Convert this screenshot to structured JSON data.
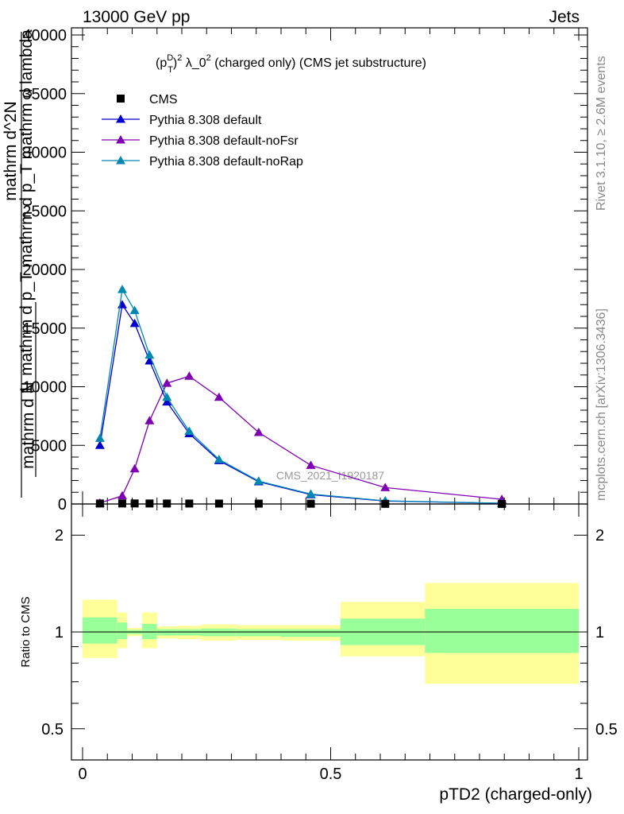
{
  "header": {
    "energy_label": "13000 GeV pp",
    "process_label": "Jets"
  },
  "side_labels": {
    "rivet": "Rivet 3.1.10, ≥ 2.6M events",
    "mcplots": "mcplots.cern.ch [arXiv:1306.3436]"
  },
  "watermark": "CMS_2021_I1920187",
  "colors": {
    "cms": "#000000",
    "default": "#0000cc",
    "noFsr": "#7f00b2",
    "noRap": "#0088b0",
    "band_inner": "#99ff99",
    "band_outer": "#ffff99"
  },
  "chart_data": [
    {
      "type": "line",
      "title": "(p_T^D)^2 λ_0^2 (charged only) (CMS jet substructure)",
      "ylabel_parts": [
        "1",
        "mathrm d N",
        "mathrm d p_T mathrm d p_T mathrm d lambda",
        "mathrm d^2N"
      ],
      "ylim": [
        0,
        40000
      ],
      "y_ticks": [
        0,
        5000,
        10000,
        15000,
        20000,
        25000,
        30000,
        35000,
        40000
      ],
      "y_tick_labels": [
        "0",
        "5000",
        "10000",
        "15000",
        "20000",
        "25000",
        "30000",
        "35000",
        "40000"
      ],
      "xlim": [
        0,
        1
      ],
      "series": [
        {
          "name": "CMS",
          "marker": "square",
          "x": [
            0.035,
            0.08,
            0.105,
            0.135,
            0.17,
            0.215,
            0.275,
            0.355,
            0.46,
            0.61,
            0.845
          ],
          "y": [
            40,
            45,
            45,
            42,
            40,
            38,
            35,
            30,
            25,
            15,
            8
          ]
        },
        {
          "name": "Pythia 8.308 default",
          "marker": "triangle",
          "x": [
            0.035,
            0.08,
            0.105,
            0.135,
            0.17,
            0.215,
            0.275,
            0.355,
            0.46,
            0.61,
            0.845
          ],
          "y": [
            5000,
            17000,
            15400,
            12200,
            8700,
            6000,
            3700,
            1900,
            800,
            250,
            60
          ]
        },
        {
          "name": "Pythia 8.308 default-noFsr",
          "marker": "triangle",
          "x": [
            0.035,
            0.08,
            0.105,
            0.135,
            0.17,
            0.215,
            0.275,
            0.355,
            0.46,
            0.61,
            0.845
          ],
          "y": [
            80,
            700,
            3000,
            7100,
            10300,
            10900,
            9100,
            6100,
            3300,
            1400,
            400
          ]
        },
        {
          "name": "Pythia 8.308 default-noRap",
          "marker": "triangle",
          "x": [
            0.035,
            0.08,
            0.105,
            0.135,
            0.17,
            0.215,
            0.275,
            0.355,
            0.46,
            0.61,
            0.845
          ],
          "y": [
            5600,
            18300,
            16500,
            12700,
            9100,
            6200,
            3800,
            1950,
            850,
            270,
            70
          ]
        }
      ]
    },
    {
      "type": "area",
      "ylabel": "Ratio to CMS",
      "xlabel": "pTD2 (charged-only)",
      "xlim": [
        0,
        1
      ],
      "x_ticks": [
        0,
        0.5,
        1
      ],
      "x_tick_labels": [
        "0",
        "0.5",
        "1"
      ],
      "y_scale": "log",
      "ylim": [
        0.4,
        2.5
      ],
      "y_ticks": [
        0.5,
        1,
        2
      ],
      "y_tick_labels": [
        "0.5",
        "1",
        "2"
      ],
      "bins": [
        {
          "x0": 0.0,
          "x1": 0.07,
          "inner": [
            0.92,
            1.11
          ],
          "outer": [
            0.83,
            1.26
          ]
        },
        {
          "x0": 0.07,
          "x1": 0.09,
          "inner": [
            0.95,
            1.07
          ],
          "outer": [
            0.89,
            1.15
          ]
        },
        {
          "x0": 0.09,
          "x1": 0.12,
          "inner": [
            0.985,
            1.015
          ],
          "outer": [
            0.97,
            1.03
          ]
        },
        {
          "x0": 0.12,
          "x1": 0.15,
          "inner": [
            0.95,
            1.06
          ],
          "outer": [
            0.89,
            1.15
          ]
        },
        {
          "x0": 0.15,
          "x1": 0.19,
          "inner": [
            0.975,
            1.02
          ],
          "outer": [
            0.955,
            1.04
          ]
        },
        {
          "x0": 0.19,
          "x1": 0.24,
          "inner": [
            0.975,
            1.02
          ],
          "outer": [
            0.95,
            1.045
          ]
        },
        {
          "x0": 0.24,
          "x1": 0.31,
          "inner": [
            0.97,
            1.025
          ],
          "outer": [
            0.94,
            1.055
          ]
        },
        {
          "x0": 0.31,
          "x1": 0.4,
          "inner": [
            0.97,
            1.02
          ],
          "outer": [
            0.945,
            1.05
          ]
        },
        {
          "x0": 0.4,
          "x1": 0.52,
          "inner": [
            0.965,
            1.02
          ],
          "outer": [
            0.94,
            1.05
          ]
        },
        {
          "x0": 0.52,
          "x1": 0.69,
          "inner": [
            0.91,
            1.1
          ],
          "outer": [
            0.84,
            1.24
          ]
        },
        {
          "x0": 0.69,
          "x1": 1.0,
          "inner": [
            0.86,
            1.18
          ],
          "outer": [
            0.69,
            1.42
          ]
        }
      ]
    }
  ]
}
